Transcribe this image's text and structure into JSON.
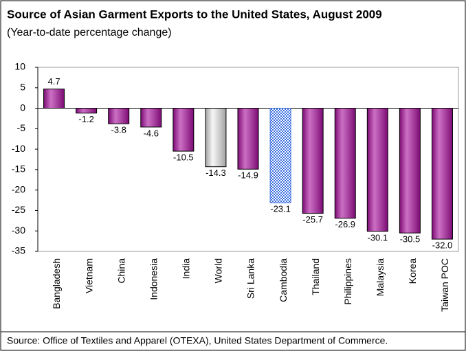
{
  "chart_data": {
    "type": "bar",
    "title": "Source of Asian Garment Exports to the United States, August 2009",
    "subtitle": "(Year-to-date percentage change)",
    "source": "Source: Office of Textiles and Apparel (OTEXA), United States Department of Commerce.",
    "categories": [
      "Bangladesh",
      "Vietnam",
      "China",
      "Indonesia",
      "India",
      "World",
      "Sri Lanka",
      "Cambodia",
      "Thailand",
      "Philippines",
      "Malaysia",
      "Korea",
      "Taiwan POC"
    ],
    "values": [
      4.7,
      -1.2,
      -3.8,
      -4.6,
      -10.5,
      -14.3,
      -14.9,
      -23.1,
      -25.7,
      -26.9,
      -30.1,
      -30.5,
      -32.0
    ],
    "value_labels": [
      "4.7",
      "-1.2",
      "-3.8",
      "-4.6",
      "-10.5",
      "-14.3",
      "-14.9",
      "-23.1",
      "-25.7",
      "-26.9",
      "-30.1",
      "-30.5",
      "-32.0"
    ],
    "colors": [
      "#7b0a73",
      "#7b0a73",
      "#7b0a73",
      "#7b0a73",
      "#7b0a73",
      "#a0a0a0",
      "#7b0a73",
      "#3a6fe0",
      "#7b0a73",
      "#7b0a73",
      "#7b0a73",
      "#7b0a73",
      "#7b0a73"
    ],
    "bar_styles": [
      "solid",
      "solid",
      "solid",
      "solid",
      "solid",
      "solid",
      "solid",
      "checkered",
      "solid",
      "solid",
      "solid",
      "solid",
      "solid"
    ],
    "ylim": [
      -35,
      10
    ],
    "yticks": [
      -35,
      -30,
      -25,
      -20,
      -15,
      -10,
      -5,
      0,
      5,
      10
    ],
    "grid": false
  }
}
